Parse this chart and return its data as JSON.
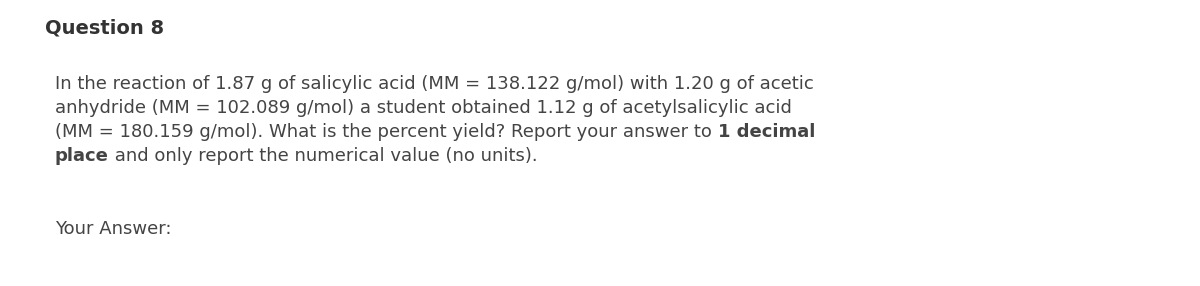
{
  "title": "Question 8",
  "title_fontsize": 14,
  "title_fontweight": "bold",
  "title_color": "#333333",
  "body_fontsize": 13,
  "body_color": "#444444",
  "background_color": "#ffffff",
  "lines": [
    {
      "segments": [
        {
          "text": "In the reaction of 1.87 g of salicylic acid (MM = 138.122 g/mol) with 1.20 g of acetic",
          "bold": false
        }
      ]
    },
    {
      "segments": [
        {
          "text": "anhydride (MM = 102.089 g/mol) a student obtained 1.12 g of acetylsalicylic acid",
          "bold": false
        }
      ]
    },
    {
      "segments": [
        {
          "text": "(MM = 180.159 g/mol). What is the percent yield? Report your answer to ",
          "bold": false
        },
        {
          "text": "1 decimal",
          "bold": true
        }
      ]
    },
    {
      "segments": [
        {
          "text": "place",
          "bold": true
        },
        {
          "text": " and only report the numerical value (no units).",
          "bold": false
        }
      ]
    }
  ],
  "answer_text": "Your Answer:",
  "answer_fontsize": 13,
  "answer_color": "#444444"
}
